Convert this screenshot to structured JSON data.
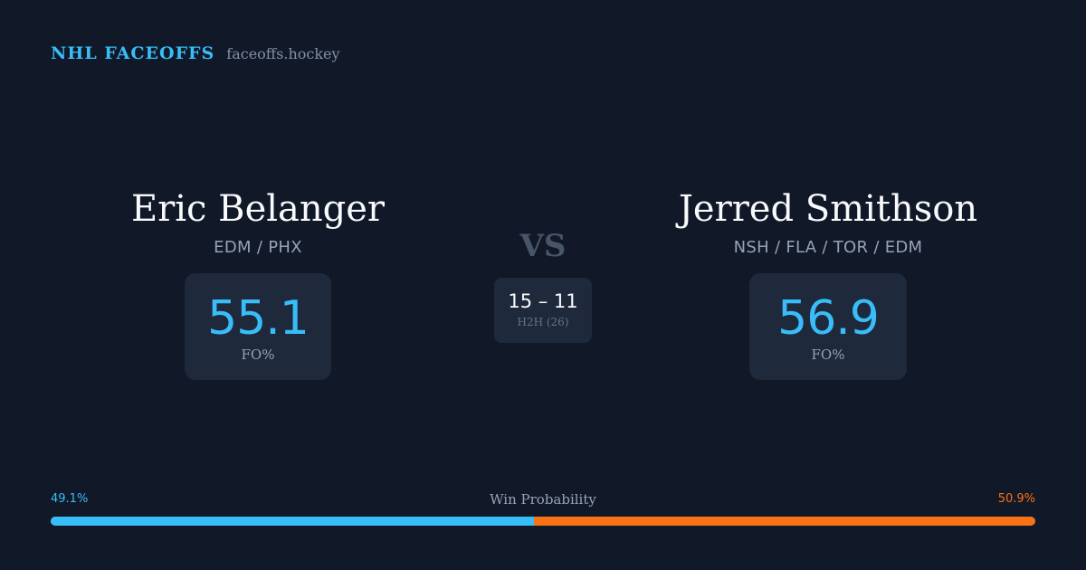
{
  "header": {
    "brand": "NHL FACEOFFS",
    "site": "faceoffs.hockey"
  },
  "players": {
    "left": {
      "name": "Eric Belanger",
      "teams": "EDM / PHX",
      "fo_pct": "55.1",
      "fo_label": "FO%"
    },
    "right": {
      "name": "Jerred Smithson",
      "teams": "NSH / FLA / TOR / EDM",
      "fo_pct": "56.9",
      "fo_label": "FO%"
    }
  },
  "matchup": {
    "vs_label": "VS",
    "h2h_score": "15 – 11",
    "h2h_label": "H2H (26)"
  },
  "win_probability": {
    "title": "Win Probability",
    "left_pct": "49.1%",
    "right_pct": "50.9%",
    "left_fraction": 0.491,
    "right_fraction": 0.509
  },
  "colors": {
    "background": "#111827",
    "card": "#1e293b",
    "accent_blue": "#38bdf8",
    "accent_orange": "#f97316",
    "muted_text": "#94a3b8"
  }
}
